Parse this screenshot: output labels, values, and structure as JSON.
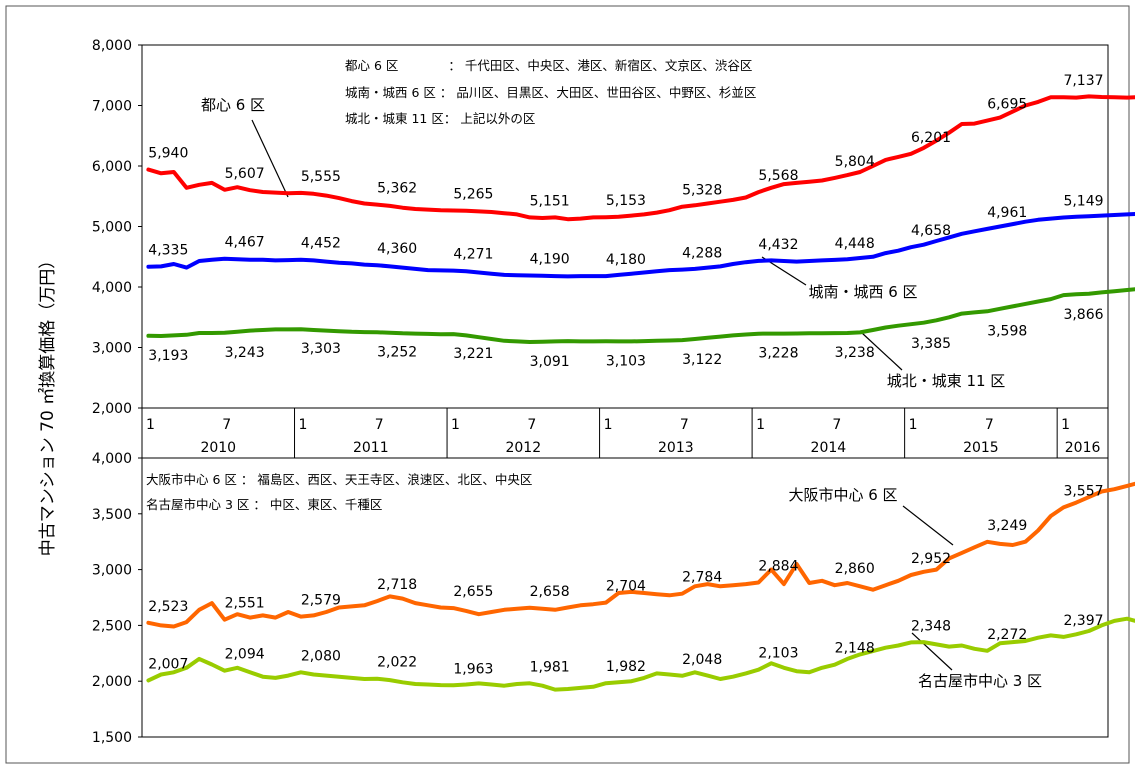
{
  "chart_data": [
    {
      "type": "line",
      "panel": "top",
      "ylabel": "中古マンション 70 ㎡換算価格（万円）",
      "ylim": [
        2000,
        8000
      ],
      "yticks": [
        "2,000",
        "3,000",
        "4,000",
        "5,000",
        "6,000",
        "7,000",
        "8,000"
      ],
      "ytick_values": [
        2000,
        3000,
        4000,
        5000,
        6000,
        7000,
        8000
      ],
      "legend_lines": [
        "都心 6 区　　　　：  千代田区、中央区、港区、新宿区、文京区、渋谷区",
        "城南・城西 6 区 ：  品川区、目黒区、大田区、世田谷区、中野区、杉並区",
        "城北・城東 11 区：  上記以外の区"
      ],
      "series": [
        {
          "name": "都心 6 区",
          "color": "#ff0000",
          "values": [
            5940,
            5880,
            5900,
            5640,
            5690,
            5720,
            5607,
            5650,
            5600,
            5570,
            5560,
            5550,
            5555,
            5540,
            5510,
            5470,
            5420,
            5380,
            5362,
            5340,
            5310,
            5290,
            5280,
            5270,
            5265,
            5260,
            5250,
            5240,
            5220,
            5200,
            5151,
            5140,
            5150,
            5120,
            5130,
            5150,
            5153,
            5160,
            5180,
            5200,
            5230,
            5270,
            5328,
            5350,
            5380,
            5410,
            5440,
            5480,
            5568,
            5640,
            5700,
            5720,
            5740,
            5760,
            5804,
            5850,
            5900,
            6000,
            6100,
            6150,
            6201,
            6300,
            6420,
            6550,
            6695,
            6700,
            6750,
            6800,
            6900,
            7000,
            7060,
            7137,
            7137,
            7130,
            7150,
            7140,
            7137,
            7130,
            7140,
            7150
          ]
        },
        {
          "name": "城南・城西 6 区",
          "color": "#0000ff",
          "values": [
            4335,
            4340,
            4380,
            4320,
            4430,
            4450,
            4467,
            4460,
            4450,
            4450,
            4440,
            4445,
            4452,
            4440,
            4420,
            4400,
            4390,
            4370,
            4360,
            4340,
            4320,
            4300,
            4280,
            4275,
            4271,
            4260,
            4240,
            4220,
            4200,
            4195,
            4190,
            4185,
            4180,
            4175,
            4180,
            4180,
            4180,
            4200,
            4220,
            4240,
            4260,
            4280,
            4288,
            4300,
            4320,
            4340,
            4380,
            4410,
            4432,
            4440,
            4430,
            4420,
            4430,
            4440,
            4448,
            4460,
            4480,
            4500,
            4560,
            4600,
            4658,
            4700,
            4760,
            4820,
            4880,
            4920,
            4961,
            5000,
            5040,
            5080,
            5110,
            5130,
            5149,
            5160,
            5170,
            5180,
            5190,
            5200,
            5210,
            5200
          ]
        },
        {
          "name": "城北・城東 11 区",
          "color": "#339900",
          "values": [
            3193,
            3190,
            3200,
            3210,
            3240,
            3240,
            3243,
            3260,
            3280,
            3290,
            3300,
            3300,
            3303,
            3290,
            3280,
            3270,
            3260,
            3255,
            3252,
            3245,
            3235,
            3230,
            3225,
            3220,
            3221,
            3200,
            3170,
            3140,
            3110,
            3100,
            3091,
            3095,
            3100,
            3105,
            3100,
            3100,
            3103,
            3100,
            3100,
            3105,
            3110,
            3115,
            3122,
            3140,
            3160,
            3180,
            3200,
            3215,
            3228,
            3230,
            3230,
            3232,
            3235,
            3236,
            3238,
            3240,
            3250,
            3290,
            3330,
            3360,
            3385,
            3410,
            3450,
            3500,
            3560,
            3580,
            3598,
            3640,
            3680,
            3720,
            3760,
            3800,
            3866,
            3880,
            3890,
            3910,
            3930,
            3950,
            3970,
            3990
          ]
        }
      ],
      "data_labels": [
        {
          "series": 0,
          "index": 0,
          "text": "5,940",
          "pos": "above"
        },
        {
          "series": 0,
          "index": 6,
          "text": "5,607",
          "pos": "above"
        },
        {
          "series": 0,
          "index": 12,
          "text": "5,555",
          "pos": "above"
        },
        {
          "series": 0,
          "index": 18,
          "text": "5,362",
          "pos": "above"
        },
        {
          "series": 0,
          "index": 24,
          "text": "5,265",
          "pos": "above"
        },
        {
          "series": 0,
          "index": 30,
          "text": "5,151",
          "pos": "above"
        },
        {
          "series": 0,
          "index": 36,
          "text": "5,153",
          "pos": "above"
        },
        {
          "series": 0,
          "index": 42,
          "text": "5,328",
          "pos": "above"
        },
        {
          "series": 0,
          "index": 48,
          "text": "5,568",
          "pos": "above"
        },
        {
          "series": 0,
          "index": 54,
          "text": "5,804",
          "pos": "above"
        },
        {
          "series": 0,
          "index": 60,
          "text": "6,201",
          "pos": "above"
        },
        {
          "series": 0,
          "index": 66,
          "text": "6,695",
          "pos": "above"
        },
        {
          "series": 0,
          "index": 72,
          "text": "7,137",
          "pos": "above"
        },
        {
          "series": 1,
          "index": 0,
          "text": "4,335",
          "pos": "above"
        },
        {
          "series": 1,
          "index": 6,
          "text": "4,467",
          "pos": "above"
        },
        {
          "series": 1,
          "index": 12,
          "text": "4,452",
          "pos": "above"
        },
        {
          "series": 1,
          "index": 18,
          "text": "4,360",
          "pos": "above"
        },
        {
          "series": 1,
          "index": 24,
          "text": "4,271",
          "pos": "above"
        },
        {
          "series": 1,
          "index": 30,
          "text": "4,190",
          "pos": "above"
        },
        {
          "series": 1,
          "index": 36,
          "text": "4,180",
          "pos": "above"
        },
        {
          "series": 1,
          "index": 42,
          "text": "4,288",
          "pos": "above"
        },
        {
          "series": 1,
          "index": 48,
          "text": "4,432",
          "pos": "above"
        },
        {
          "series": 1,
          "index": 54,
          "text": "4,448",
          "pos": "above"
        },
        {
          "series": 1,
          "index": 60,
          "text": "4,658",
          "pos": "above"
        },
        {
          "series": 1,
          "index": 66,
          "text": "4,961",
          "pos": "above"
        },
        {
          "series": 1,
          "index": 72,
          "text": "5,149",
          "pos": "above"
        },
        {
          "series": 2,
          "index": 0,
          "text": "3,193",
          "pos": "below"
        },
        {
          "series": 2,
          "index": 6,
          "text": "3,243",
          "pos": "below"
        },
        {
          "series": 2,
          "index": 12,
          "text": "3,303",
          "pos": "below"
        },
        {
          "series": 2,
          "index": 18,
          "text": "3,252",
          "pos": "below"
        },
        {
          "series": 2,
          "index": 24,
          "text": "3,221",
          "pos": "below"
        },
        {
          "series": 2,
          "index": 30,
          "text": "3,091",
          "pos": "below"
        },
        {
          "series": 2,
          "index": 36,
          "text": "3,103",
          "pos": "below"
        },
        {
          "series": 2,
          "index": 42,
          "text": "3,122",
          "pos": "below"
        },
        {
          "series": 2,
          "index": 48,
          "text": "3,228",
          "pos": "below"
        },
        {
          "series": 2,
          "index": 54,
          "text": "3,238",
          "pos": "below"
        },
        {
          "series": 2,
          "index": 60,
          "text": "3,385",
          "pos": "below"
        },
        {
          "series": 2,
          "index": 66,
          "text": "3,598",
          "pos": "below"
        },
        {
          "series": 2,
          "index": 72,
          "text": "3,866",
          "pos": "below"
        }
      ],
      "callouts": [
        {
          "text": "都心 6 区",
          "series": 0
        },
        {
          "text": "城南・城西 6 区",
          "series": 1
        },
        {
          "text": "城北・城東 11 区",
          "series": 2
        }
      ]
    },
    {
      "type": "line",
      "panel": "bottom",
      "ylim": [
        1500,
        4000
      ],
      "yticks": [
        "1,500",
        "2,000",
        "2,500",
        "3,000",
        "3,500",
        "4,000"
      ],
      "ytick_values": [
        1500,
        2000,
        2500,
        3000,
        3500,
        4000
      ],
      "legend_lines": [
        "大阪市中心 6 区 ：  福島区、西区、天王寺区、浪速区、北区、中央区",
        "名古屋市中心 3 区 ：  中区、東区、千種区"
      ],
      "series": [
        {
          "name": "大阪市中心 6 区",
          "color": "#ff6600",
          "values": [
            2523,
            2500,
            2490,
            2530,
            2640,
            2700,
            2551,
            2600,
            2570,
            2590,
            2570,
            2620,
            2579,
            2590,
            2620,
            2660,
            2670,
            2680,
            2718,
            2760,
            2740,
            2700,
            2680,
            2660,
            2655,
            2630,
            2600,
            2620,
            2640,
            2650,
            2658,
            2650,
            2640,
            2660,
            2680,
            2690,
            2704,
            2790,
            2800,
            2790,
            2780,
            2770,
            2784,
            2850,
            2870,
            2850,
            2860,
            2870,
            2884,
            3000,
            2870,
            3050,
            2880,
            2900,
            2860,
            2880,
            2850,
            2820,
            2860,
            2900,
            2952,
            2980,
            3000,
            3100,
            3150,
            3200,
            3249,
            3230,
            3220,
            3250,
            3350,
            3480,
            3557,
            3600,
            3650,
            3700,
            3720,
            3750,
            3780,
            3800
          ]
        },
        {
          "name": "名古屋市中心 3 区",
          "color": "#99cc00",
          "values": [
            2007,
            2060,
            2080,
            2120,
            2200,
            2150,
            2094,
            2120,
            2080,
            2040,
            2030,
            2050,
            2080,
            2060,
            2050,
            2040,
            2030,
            2020,
            2022,
            2010,
            1990,
            1975,
            1970,
            1965,
            1963,
            1970,
            1980,
            1970,
            1960,
            1975,
            1981,
            1960,
            1925,
            1930,
            1940,
            1950,
            1982,
            1990,
            2000,
            2030,
            2070,
            2060,
            2048,
            2080,
            2050,
            2020,
            2040,
            2070,
            2103,
            2160,
            2120,
            2090,
            2080,
            2120,
            2148,
            2200,
            2240,
            2270,
            2300,
            2320,
            2348,
            2350,
            2330,
            2310,
            2320,
            2290,
            2272,
            2340,
            2350,
            2360,
            2390,
            2410,
            2397,
            2420,
            2450,
            2500,
            2540,
            2560,
            2530,
            2500
          ]
        }
      ],
      "data_labels": [
        {
          "series": 0,
          "index": 0,
          "text": "2,523",
          "pos": "above"
        },
        {
          "series": 0,
          "index": 6,
          "text": "2,551",
          "pos": "above"
        },
        {
          "series": 0,
          "index": 12,
          "text": "2,579",
          "pos": "above"
        },
        {
          "series": 0,
          "index": 18,
          "text": "2,718",
          "pos": "above"
        },
        {
          "series": 0,
          "index": 24,
          "text": "2,655",
          "pos": "above"
        },
        {
          "series": 0,
          "index": 30,
          "text": "2,658",
          "pos": "above"
        },
        {
          "series": 0,
          "index": 36,
          "text": "2,704",
          "pos": "above"
        },
        {
          "series": 0,
          "index": 42,
          "text": "2,784",
          "pos": "above"
        },
        {
          "series": 0,
          "index": 48,
          "text": "2,884",
          "pos": "above"
        },
        {
          "series": 0,
          "index": 54,
          "text": "2,860",
          "pos": "above"
        },
        {
          "series": 0,
          "index": 60,
          "text": "2,952",
          "pos": "above"
        },
        {
          "series": 0,
          "index": 66,
          "text": "3,249",
          "pos": "above"
        },
        {
          "series": 0,
          "index": 72,
          "text": "3,557",
          "pos": "above"
        },
        {
          "series": 1,
          "index": 0,
          "text": "2,007",
          "pos": "above"
        },
        {
          "series": 1,
          "index": 6,
          "text": "2,094",
          "pos": "above"
        },
        {
          "series": 1,
          "index": 12,
          "text": "2,080",
          "pos": "above"
        },
        {
          "series": 1,
          "index": 18,
          "text": "2,022",
          "pos": "above"
        },
        {
          "series": 1,
          "index": 24,
          "text": "1,963",
          "pos": "above"
        },
        {
          "series": 1,
          "index": 30,
          "text": "1,981",
          "pos": "above"
        },
        {
          "series": 1,
          "index": 36,
          "text": "1,982",
          "pos": "above"
        },
        {
          "series": 1,
          "index": 42,
          "text": "2,048",
          "pos": "above"
        },
        {
          "series": 1,
          "index": 48,
          "text": "2,103",
          "pos": "above"
        },
        {
          "series": 1,
          "index": 54,
          "text": "2,148",
          "pos": "above"
        },
        {
          "series": 1,
          "index": 60,
          "text": "2,348",
          "pos": "above"
        },
        {
          "series": 1,
          "index": 66,
          "text": "2,272",
          "pos": "above"
        },
        {
          "series": 1,
          "index": 72,
          "text": "2,397",
          "pos": "above"
        }
      ],
      "callouts": [
        {
          "text": "大阪市中心 6 区",
          "series": 0
        },
        {
          "text": "名古屋市中心 3 区",
          "series": 1
        }
      ]
    }
  ],
  "x_axis": {
    "month_ticks": [
      {
        "index": 0,
        "label": "1"
      },
      {
        "index": 6,
        "label": "7"
      },
      {
        "index": 12,
        "label": "1"
      },
      {
        "index": 18,
        "label": "7"
      },
      {
        "index": 24,
        "label": "1"
      },
      {
        "index": 30,
        "label": "7"
      },
      {
        "index": 36,
        "label": "1"
      },
      {
        "index": 42,
        "label": "7"
      },
      {
        "index": 48,
        "label": "1"
      },
      {
        "index": 54,
        "label": "7"
      },
      {
        "index": 60,
        "label": "1"
      },
      {
        "index": 66,
        "label": "7"
      },
      {
        "index": 72,
        "label": "1"
      }
    ],
    "years": [
      {
        "start": 0,
        "label": "2010"
      },
      {
        "start": 12,
        "label": "2011"
      },
      {
        "start": 24,
        "label": "2012"
      },
      {
        "start": 36,
        "label": "2013"
      },
      {
        "start": 48,
        "label": "2014"
      },
      {
        "start": 60,
        "label": "2015"
      },
      {
        "start": 72,
        "label": "2016"
      }
    ]
  }
}
